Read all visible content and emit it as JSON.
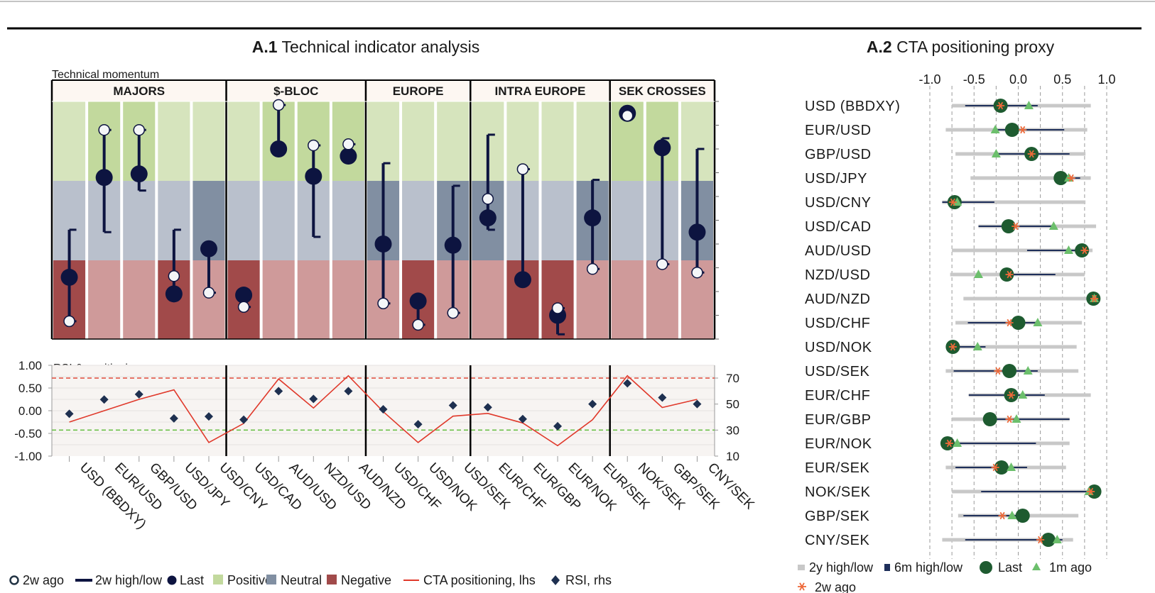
{
  "a1": {
    "title_bold": "A.1",
    "title_rest": " Technical indicator analysis",
    "momentum_label": "Technical momentum",
    "rsi_label": "RSI & positioning",
    "groups": [
      {
        "name": "MAJORS",
        "pairs": [
          "USD (BBDXY)",
          "EUR/USD",
          "GBP/USD",
          "USD/JPY",
          "USD/CNY"
        ]
      },
      {
        "name": "$-BLOC",
        "pairs": [
          "USD/CAD",
          "AUD/USD",
          "NZD/USD",
          "AUD/NZD"
        ]
      },
      {
        "name": "EUROPE",
        "pairs": [
          "USD/CHF",
          "USD/NOK",
          "USD/SEK"
        ]
      },
      {
        "name": "INTRA EUROPE",
        "pairs": [
          "EUR/CHF",
          "EUR/GBP",
          "EUR/NOK",
          "EUR/SEK"
        ]
      },
      {
        "name": "SEK CROSSES",
        "pairs": [
          "NOK/SEK",
          "GBP/SEK",
          "CNY/SEK"
        ]
      }
    ]
  },
  "chart_data": [
    {
      "type": "scatter",
      "title": "Technical momentum",
      "categories": [
        "USD (BBDXY)",
        "EUR/USD",
        "GBP/USD",
        "USD/JPY",
        "USD/CNY",
        "USD/CAD",
        "AUD/USD",
        "NZD/USD",
        "AUD/NZD",
        "USD/CHF",
        "USD/NOK",
        "USD/SEK",
        "EUR/CHF",
        "EUR/GBP",
        "EUR/NOK",
        "EUR/SEK",
        "NOK/SEK",
        "GBP/SEK",
        "CNY/SEK"
      ],
      "ylim": [
        0,
        100
      ],
      "zones": [
        "Negative",
        "Neutral",
        "Positive"
      ],
      "series": [
        {
          "name": "Last",
          "values": [
            26,
            68,
            69.5,
            19,
            38,
            18.5,
            80,
            68.5,
            77,
            40,
            16,
            39.5,
            51,
            25,
            10,
            51,
            95,
            80.5,
            45
          ]
        },
        {
          "name": "2w ago",
          "values": [
            7.5,
            88,
            88,
            26.5,
            19.5,
            13.5,
            98.5,
            81.5,
            82,
            15,
            6,
            11,
            59,
            71.5,
            13,
            29.5,
            94,
            31.5,
            28
          ]
        },
        {
          "name": "2w high/low",
          "low": [
            7.5,
            45,
            62.5,
            19,
            19.5,
            13.5,
            80,
            43,
            77,
            15,
            6,
            11,
            46,
            25,
            2,
            29.5,
            94,
            31.5,
            28
          ],
          "high": [
            46,
            88,
            88,
            46,
            38,
            18.5,
            98.5,
            81.5,
            82,
            74,
            16,
            64.5,
            86,
            71.5,
            13,
            67,
            95,
            84.5,
            80
          ]
        }
      ],
      "zone_by_pair": [
        "Negative",
        "Positive",
        "Positive",
        "Negative",
        "Neutral",
        "Negative",
        "Positive",
        "Positive",
        "Positive",
        "Neutral",
        "Negative",
        "Neutral",
        "Neutral",
        "Negative",
        "Negative",
        "Neutral",
        "Positive",
        "Positive",
        "Neutral"
      ]
    },
    {
      "type": "line",
      "title": "RSI & positioning",
      "categories": [
        "USD (BBDXY)",
        "EUR/USD",
        "GBP/USD",
        "USD/JPY",
        "USD/CNY",
        "USD/CAD",
        "AUD/USD",
        "NZD/USD",
        "AUD/NZD",
        "USD/CHF",
        "USD/NOK",
        "USD/SEK",
        "EUR/CHF",
        "EUR/GBP",
        "EUR/NOK",
        "EUR/SEK",
        "NOK/SEK",
        "GBP/SEK",
        "CNY/SEK"
      ],
      "ylim_left": [
        -1.0,
        1.0
      ],
      "ylim_right": [
        10,
        70
      ],
      "yticks_left": [
        "1.00",
        "0.50",
        "0.00",
        "-0.50",
        "-1.00"
      ],
      "yticks_right": [
        "70",
        "50",
        "30",
        "10"
      ],
      "threshold_upper_rhs": 70,
      "threshold_lower_rhs": 30,
      "series": [
        {
          "name": "CTA positioning, lhs",
          "values": [
            -0.25,
            0.0,
            0.25,
            0.46,
            -0.7,
            -0.28,
            0.7,
            0.06,
            0.77,
            -0.02,
            -0.7,
            -0.12,
            -0.06,
            -0.27,
            -0.77,
            -0.2,
            0.77,
            0.07,
            0.25
          ]
        },
        {
          "name": "RSI, rhs",
          "values": [
            42.5,
            53.5,
            57.5,
            39,
            40.5,
            38,
            60,
            54,
            60,
            46,
            34.5,
            49,
            47.5,
            38.5,
            33,
            50,
            66,
            55,
            50
          ]
        }
      ]
    },
    {
      "type": "scatter",
      "title": "A.2 CTA positioning proxy",
      "categories": [
        "USD (BBDXY)",
        "EUR/USD",
        "GBP/USD",
        "USD/JPY",
        "USD/CNY",
        "USD/CAD",
        "AUD/USD",
        "NZD/USD",
        "AUD/NZD",
        "USD/CHF",
        "USD/NOK",
        "USD/SEK",
        "EUR/CHF",
        "EUR/GBP",
        "EUR/NOK",
        "EUR/SEK",
        "NOK/SEK",
        "GBP/SEK",
        "CNY/SEK"
      ],
      "xlim": [
        -1.0,
        1.0
      ],
      "xticks": [
        "-1.0",
        "-0.5",
        "0.0",
        "0.5",
        "1.0"
      ],
      "series": [
        {
          "name": "2y high/low",
          "low": [
            -0.75,
            -0.82,
            -0.71,
            -0.54,
            -0.86,
            -0.45,
            -0.75,
            -0.77,
            -0.62,
            -0.71,
            -0.77,
            -0.82,
            -0.56,
            -0.75,
            -0.75,
            -0.82,
            -0.75,
            -0.68,
            -0.86
          ],
          "high": [
            0.82,
            0.78,
            0.76,
            0.82,
            0.76,
            0.88,
            0.84,
            0.75,
            0.88,
            0.72,
            0.66,
            0.68,
            0.82,
            0.58,
            0.58,
            0.54,
            0.86,
            0.68,
            0.62
          ]
        },
        {
          "name": "6m high/low",
          "low": [
            -0.6,
            -0.27,
            -0.24,
            0.48,
            -0.86,
            -0.45,
            0.1,
            -0.17,
            0.8,
            -0.57,
            -0.75,
            -0.73,
            -0.56,
            -0.35,
            -0.8,
            -0.71,
            -0.42,
            -0.62,
            -0.6
          ],
          "high": [
            0.22,
            0.52,
            0.58,
            0.7,
            -0.27,
            0.4,
            0.7,
            0.42,
            0.85,
            0.2,
            -0.37,
            0.22,
            0.3,
            0.58,
            0.2,
            0.1,
            0.85,
            0.05,
            0.5
          ]
        },
        {
          "name": "Last",
          "values": [
            -0.2,
            -0.07,
            0.15,
            0.48,
            -0.72,
            -0.11,
            0.72,
            -0.13,
            0.85,
            0.0,
            -0.74,
            -0.1,
            -0.08,
            -0.32,
            -0.8,
            -0.19,
            0.86,
            0.05,
            0.34
          ]
        },
        {
          "name": "1m ago",
          "values": [
            0.12,
            -0.26,
            -0.25,
            0.57,
            -0.69,
            0.4,
            0.57,
            -0.45,
            0.86,
            0.22,
            -0.46,
            0.11,
            0.05,
            -0.02,
            -0.69,
            -0.08,
            0.8,
            -0.07,
            0.44
          ]
        },
        {
          "name": "2w ago",
          "values": [
            -0.2,
            0.05,
            0.15,
            0.6,
            -0.74,
            -0.03,
            0.75,
            -0.1,
            0.86,
            -0.1,
            -0.74,
            -0.23,
            -0.08,
            -0.1,
            -0.78,
            -0.26,
            0.82,
            -0.18,
            0.25
          ]
        }
      ]
    }
  ],
  "a2": {
    "title_bold": "A.2",
    "title_rest": " CTA positioning proxy"
  },
  "legend_a1": [
    {
      "key": "2w ago",
      "label": "2w ago"
    },
    {
      "key": "2w high/low",
      "label": "2w high/low"
    },
    {
      "key": "Last",
      "label": "Last"
    },
    {
      "key": "Positive",
      "label": "Positive"
    },
    {
      "key": "Neutral",
      "label": "Neutral"
    },
    {
      "key": "Negative",
      "label": "Negative"
    },
    {
      "key": "CTA",
      "label": "CTA positioning, lhs"
    },
    {
      "key": "RSI",
      "label": "RSI, rhs"
    }
  ],
  "legend_a2": [
    {
      "key": "2y",
      "label": "2y high/low"
    },
    {
      "key": "6m",
      "label": "6m high/low"
    },
    {
      "key": "Last",
      "label": "Last"
    },
    {
      "key": "1m",
      "label": "1m ago"
    },
    {
      "key": "2w",
      "label": "2w ago"
    }
  ],
  "colors": {
    "navy": "#0d1440",
    "dark_green": "#1e5b30",
    "light_green_marker": "#6cbf6c",
    "orange": "#ee6a3a",
    "pos_light": "#d6e4bd",
    "pos_dark": "#c2d99d",
    "neu_light": "#b9c0cc",
    "neu_dark": "#818fa2",
    "neg_light": "#cf9a9a",
    "neg_dark": "#a14a4a",
    "cta_line": "#e0392b",
    "upper_thr": "#e04a3a",
    "lower_thr": "#6cc04a",
    "range_grey": "#c8c8c8"
  }
}
